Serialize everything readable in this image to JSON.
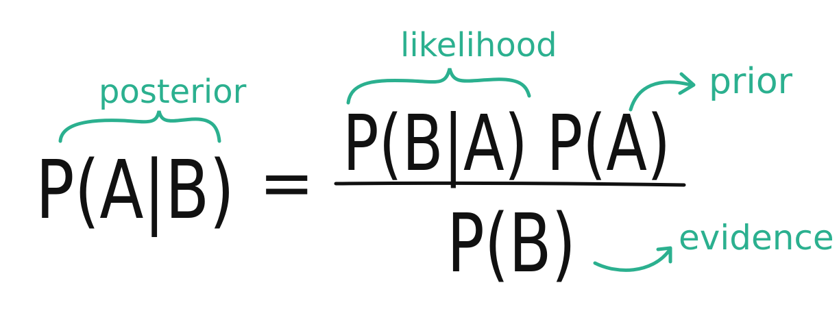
{
  "formula": {
    "lhs": "P(A|B)",
    "equals": "=",
    "numerator": "P(B|A) P(A)",
    "denominator": "P(B)"
  },
  "annotations": {
    "posterior": "posterior",
    "likelihood": "likelihood",
    "prior": "prior",
    "evidence": "evidence"
  },
  "colors": {
    "ink": "#111111",
    "annotation": "#2bb08f"
  }
}
